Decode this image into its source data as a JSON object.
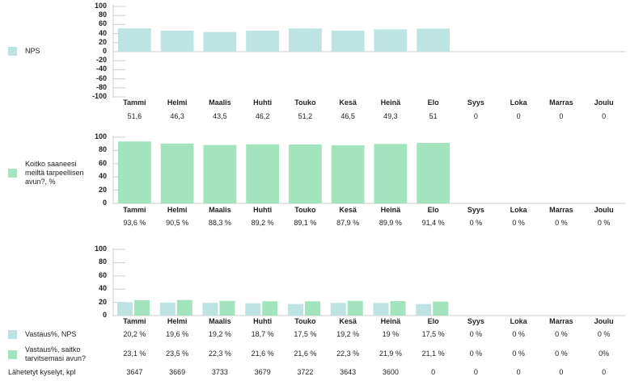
{
  "colors": {
    "nps": "#bde3e3",
    "help": "#a3e3bd",
    "axis": "#cccccc"
  },
  "months": [
    "Tammi",
    "Helmi",
    "Maalis",
    "Huhti",
    "Touko",
    "Kesä",
    "Heinä",
    "Elo",
    "Syys",
    "Loka",
    "Marras",
    "Joulu"
  ],
  "chart_data": [
    {
      "type": "bar",
      "title": "NPS",
      "legend": "NPS",
      "ylim": [
        -100,
        100
      ],
      "yticks": [
        "100",
        "80",
        "60",
        "40",
        "20",
        "0",
        "-20",
        "-40",
        "-60",
        "-80",
        "-100"
      ],
      "values": [
        51.6,
        46.3,
        43.5,
        46.2,
        51.2,
        46.5,
        49.3,
        51,
        0,
        0,
        0,
        0
      ],
      "labels": [
        "51,6",
        "46,3",
        "43,5",
        "46,2",
        "51,2",
        "46,5",
        "49,3",
        "51",
        "0",
        "0",
        "0",
        "0"
      ]
    },
    {
      "type": "bar",
      "title": "Koitko saaneesi meiltä tarpeellisen avun?, %",
      "legend": "Koitko saaneesi meiltä tarpeellisen avun?, %",
      "ylim": [
        0,
        100
      ],
      "yticks": [
        "100",
        "80",
        "60",
        "40",
        "20",
        "0"
      ],
      "values": [
        93.6,
        90.5,
        88.3,
        89.2,
        89.1,
        87.9,
        89.9,
        91.4,
        0,
        0,
        0,
        0
      ],
      "labels": [
        "93,6 %",
        "90,5 %",
        "88,3 %",
        "89,2 %",
        "89,1 %",
        "87,9 %",
        "89,9 %",
        "91,4 %",
        "0 %",
        "0 %",
        "0 %",
        "0 %"
      ]
    },
    {
      "type": "bar",
      "ylim": [
        0,
        100
      ],
      "yticks": [
        "100",
        "80",
        "60",
        "40",
        "20",
        "0"
      ],
      "series": [
        {
          "name": "Vastaus%, NPS",
          "values": [
            20.2,
            19.6,
            19.2,
            18.7,
            17.5,
            19.2,
            19,
            17.5,
            0,
            0,
            0,
            0
          ],
          "labels": [
            "20,2 %",
            "19,6 %",
            "19,2 %",
            "18,7 %",
            "17,5 %",
            "19,2 %",
            "19 %",
            "17,5 %",
            "0 %",
            "0 %",
            "0 %",
            "0 %"
          ]
        },
        {
          "name": "Vastaus%, saitko tarvitsemasi avun?",
          "values": [
            23.1,
            23.5,
            22.3,
            21.6,
            21.6,
            22.3,
            21.9,
            21.1,
            0,
            0,
            0,
            0
          ],
          "labels": [
            "23,1 %",
            "23,5 %",
            "22,3 %",
            "21,6 %",
            "21,6 %",
            "22,3 %",
            "21,9 %",
            "21,1 %",
            "0 %",
            "0 %",
            "0 %",
            "0%"
          ]
        }
      ],
      "extra_row": {
        "name": "Lähetetyt kyselyt, kpl",
        "labels": [
          "3647",
          "3669",
          "3733",
          "3679",
          "3722",
          "3643",
          "3600",
          "0",
          "0",
          "0",
          "0",
          "0"
        ]
      }
    }
  ]
}
